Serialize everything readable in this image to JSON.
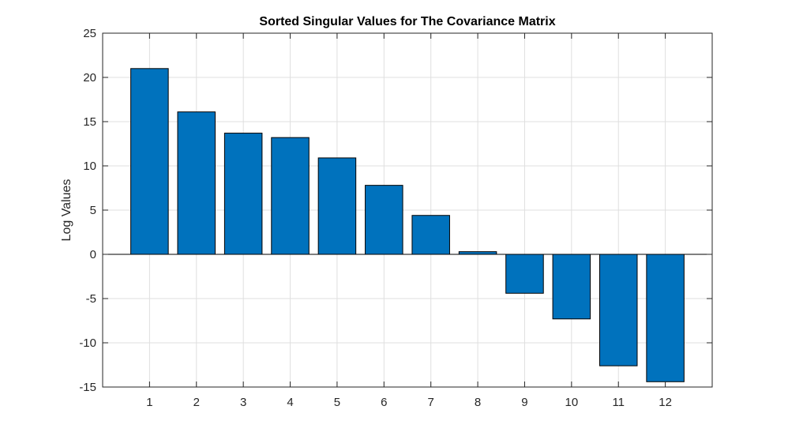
{
  "chart_data": {
    "type": "bar",
    "title": "Sorted Singular Values for The Covariance Matrix",
    "xlabel": "",
    "ylabel": "Log Values",
    "categories": [
      "1",
      "2",
      "3",
      "4",
      "5",
      "6",
      "7",
      "8",
      "9",
      "10",
      "11",
      "12"
    ],
    "values": [
      21.0,
      16.1,
      13.7,
      13.2,
      10.9,
      7.8,
      4.4,
      0.3,
      -4.4,
      -7.3,
      -12.6,
      -14.4
    ],
    "ylim": [
      -15,
      25
    ],
    "xlim": [
      0,
      13
    ],
    "yticks": [
      -15,
      -10,
      -5,
      0,
      5,
      10,
      15,
      20,
      25
    ],
    "ytick_labels": [
      "-15",
      "-10",
      "-5",
      "0",
      "5",
      "10",
      "15",
      "20",
      "25"
    ],
    "grid": true,
    "legend": "none",
    "colors": {
      "bar_fill": "#0072BD",
      "bar_edge": "#000000",
      "grid": "#DFDFDF",
      "axes": "#262626"
    }
  }
}
